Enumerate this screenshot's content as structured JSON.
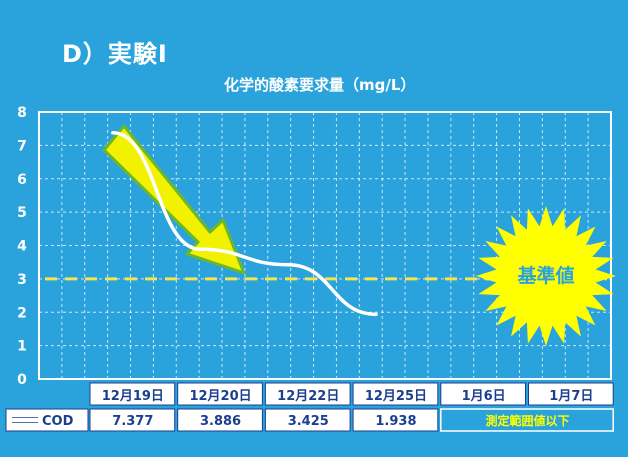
{
  "slide": {
    "title": "D）実験Ⅰ",
    "subtitle": "化学的酸素要求量（mg/L）"
  },
  "chart_data": {
    "type": "line",
    "ylim": [
      0,
      8
    ],
    "yticks": [
      "0",
      "1",
      "2",
      "3",
      "4",
      "5",
      "6",
      "7",
      "8"
    ],
    "categories": [
      "12月19日",
      "12月20日",
      "12月22日",
      "12月25日",
      "1月6日",
      "1月7日"
    ],
    "series": [
      {
        "name": "COD",
        "values": [
          "7.377",
          "3.886",
          "3.425",
          "1.938",
          null,
          null
        ],
        "color": "#ffffff"
      }
    ],
    "below_range_note": "測定範囲値以下",
    "reference_line": {
      "label": "基準値",
      "value": 3,
      "color": "#f5e64a"
    },
    "colors": {
      "background": "#2aa3dc",
      "grid": "#ffffff",
      "arrow": "#f2f200",
      "arrow_outline": "#6ab62f",
      "starburst": "#ffff00"
    }
  }
}
